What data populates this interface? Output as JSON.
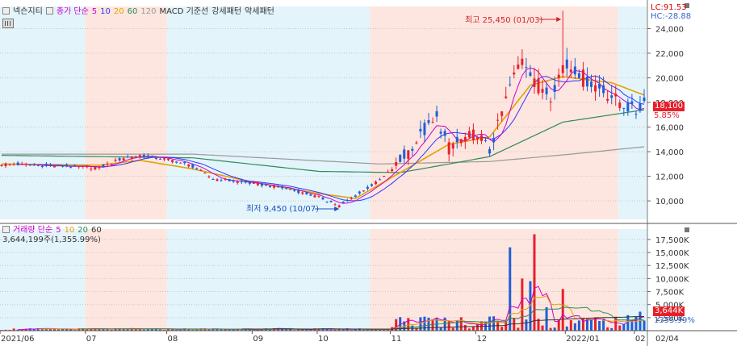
{
  "header": {
    "stock_name": "넥슨지티",
    "main_legend": [
      {
        "label": "종가 단순",
        "color": "#cc00cc"
      },
      {
        "label": "5",
        "color": "#cc00cc"
      },
      {
        "label": "10",
        "color": "#3333ff"
      },
      {
        "label": "20",
        "color": "#e6a000"
      },
      {
        "label": "60",
        "color": "#2e8b57"
      },
      {
        "label": "120",
        "color": "#999999"
      },
      {
        "label": "MACD 기준선",
        "color": "#333333"
      },
      {
        "label": "강세패턴",
        "color": "#333333"
      },
      {
        "label": "약세패턴",
        "color": "#333333"
      }
    ],
    "lc_label": "LC:91.53",
    "hc_label": "HC:-28.88"
  },
  "volume_panel": {
    "legend": [
      {
        "label": "거래량 단순",
        "color": "#cc00cc"
      },
      {
        "label": "5",
        "color": "#cc00cc"
      },
      {
        "label": "10",
        "color": "#e6a000"
      },
      {
        "label": "20",
        "color": "#2e8b57"
      },
      {
        "label": "60",
        "color": "#333333"
      }
    ],
    "current_value": "3,644,199주(1,355.99%)",
    "tag_value": "3,644K",
    "tag_pct": "1355.99%"
  },
  "price_tags": {
    "last_price": "18,100",
    "last_change": "5.85%"
  },
  "annotations": {
    "high": "최고 25,450 (01/03)",
    "low": "최저 9,450 (10/07)"
  },
  "colors": {
    "up": "#e8202a",
    "down": "#1f5fd6",
    "bg_blue": "#e3f4fb",
    "bg_red": "#fde6df"
  },
  "chart_data": {
    "type": "candlestick",
    "x_labels": [
      "2021/06",
      "07",
      "08",
      "09",
      "10",
      "11",
      "12",
      "2022/01",
      "02",
      "02/04"
    ],
    "price_axis": {
      "ticks": [
        10000,
        12000,
        14000,
        16000,
        18000,
        20000,
        22000,
        24000
      ],
      "tick_labels": [
        "10,000",
        "12,000",
        "14,000",
        "16,000",
        "18,000",
        "20,000",
        "22,000",
        "24,000"
      ],
      "ylim": [
        8500,
        25800
      ]
    },
    "volume_axis": {
      "ticks": [
        2500,
        5000,
        7500,
        10000,
        12500,
        15000,
        17500
      ],
      "tick_labels": [
        "2,500K",
        "5,000K",
        "7,500K",
        "10,000K",
        "12,500K",
        "15,000K",
        "17,500K"
      ],
      "ylim": [
        0,
        19500
      ]
    },
    "high": {
      "value": 25450,
      "date": "01/03"
    },
    "low": {
      "value": 9450,
      "date": "10/07"
    },
    "anchors": [
      [
        0,
        13000
      ],
      [
        24,
        12700
      ],
      [
        30,
        13500
      ],
      [
        34,
        13700
      ],
      [
        42,
        13300
      ],
      [
        47,
        12800
      ],
      [
        52,
        11800
      ],
      [
        62,
        11400
      ],
      [
        70,
        11000
      ],
      [
        78,
        10300
      ],
      [
        83,
        9600
      ],
      [
        87,
        10400
      ],
      [
        93,
        11700
      ],
      [
        98,
        13200
      ],
      [
        103,
        15300
      ],
      [
        107,
        16600
      ],
      [
        110,
        14400
      ],
      [
        117,
        15600
      ],
      [
        120,
        14000
      ],
      [
        125,
        19300
      ],
      [
        128,
        21800
      ],
      [
        132,
        19500
      ],
      [
        135,
        18600
      ],
      [
        138,
        21000
      ],
      [
        141,
        20800
      ],
      [
        144,
        19800
      ],
      [
        150,
        18500
      ],
      [
        153,
        17800
      ],
      [
        156,
        17200
      ],
      [
        158,
        18100
      ]
    ],
    "ma_anchors": {
      "ma20": [
        [
          0,
          13000
        ],
        [
          24,
          12900
        ],
        [
          34,
          13300
        ],
        [
          47,
          12600
        ],
        [
          62,
          11500
        ],
        [
          78,
          10600
        ],
        [
          87,
          10200
        ],
        [
          98,
          12300
        ],
        [
          110,
          14600
        ],
        [
          120,
          15200
        ],
        [
          130,
          19400
        ],
        [
          138,
          20100
        ],
        [
          150,
          19600
        ],
        [
          158,
          18600
        ]
      ],
      "ma60": [
        [
          0,
          13700
        ],
        [
          47,
          13500
        ],
        [
          78,
          12400
        ],
        [
          98,
          12300
        ],
        [
          110,
          13000
        ],
        [
          120,
          13600
        ],
        [
          138,
          16400
        ],
        [
          158,
          17400
        ]
      ],
      "ma120": [
        [
          0,
          13800
        ],
        [
          47,
          13800
        ],
        [
          93,
          13000
        ],
        [
          120,
          13200
        ],
        [
          140,
          13800
        ],
        [
          158,
          14400
        ]
      ]
    },
    "volume_spikes": {
      "98": 2600,
      "112": 2000,
      "118": 1800,
      "125": 16000,
      "128": 10000,
      "130": 9500,
      "131": 18500,
      "134": 4500,
      "138": 8000,
      "157": 3644
    },
    "bands": [
      {
        "from": 0,
        "to": 21,
        "color": "blue"
      },
      {
        "from": 21,
        "to": 41,
        "color": "red"
      },
      {
        "from": 41,
        "to": 91,
        "color": "blue"
      },
      {
        "from": 91,
        "to": 152,
        "color": "red"
      },
      {
        "from": 152,
        "to": 159,
        "color": "blue"
      }
    ],
    "n": 159
  }
}
